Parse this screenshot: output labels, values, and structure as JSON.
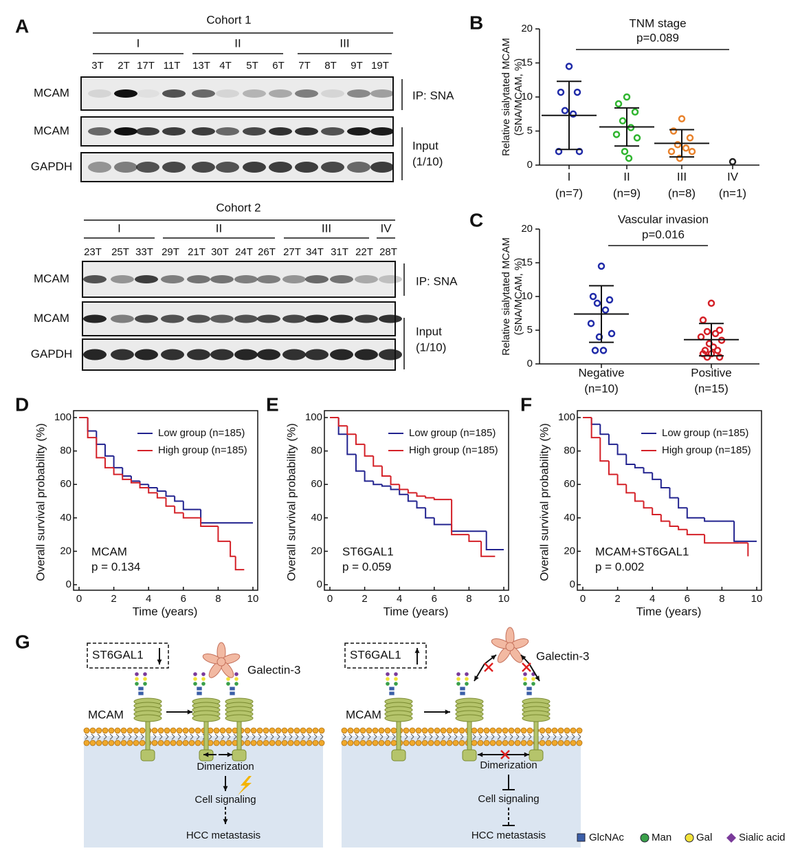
{
  "panel_labels": {
    "a": "A",
    "b": "B",
    "c": "C",
    "d": "D",
    "e": "E",
    "f": "F",
    "g": "G"
  },
  "blots": [
    {
      "title": "Cohort 1",
      "groups": [
        "I",
        "II",
        "III"
      ],
      "samples": [
        "3T",
        "2T",
        "17T",
        "11T",
        "13T",
        "4T",
        "5T",
        "6T",
        "7T",
        "8T",
        "9T",
        "19T"
      ],
      "rows": [
        "MCAM",
        "MCAM",
        "GAPDH"
      ],
      "annotations": [
        "IP: SNA",
        "Input",
        "(1/10)"
      ]
    },
    {
      "title": "Cohort 2",
      "groups": [
        "I",
        "II",
        "III",
        "IV"
      ],
      "samples": [
        "23T",
        "25T",
        "33T",
        "29T",
        "21T",
        "30T",
        "24T",
        "26T",
        "27T",
        "34T",
        "31T",
        "22T",
        "28T"
      ],
      "rows": [
        "MCAM",
        "MCAM",
        "GAPDH"
      ],
      "annotations": [
        "IP: SNA",
        "Input",
        "(1/10)"
      ]
    }
  ],
  "chart_data": [
    {
      "type": "dotplot",
      "title": "TNM stage",
      "annotation": "p=0.089",
      "y_label": [
        "Relative sialytated MCAM",
        "(SNA/MCAM, %)"
      ],
      "categories": [
        "I",
        "II",
        "III",
        "IV"
      ],
      "category_counts": [
        "(n=7)",
        "(n=9)",
        "(n=8)",
        "(n=1)"
      ],
      "colors": [
        "#1f2aa8",
        "#2fb52f",
        "#e8822c",
        "#222222"
      ],
      "points": [
        [
          14.5,
          10.7,
          10.7,
          8.0,
          7.5,
          2.0,
          2.0
        ],
        [
          10.0,
          9.0,
          7.8,
          6.5,
          5.5,
          4.5,
          4.0,
          2.0,
          1.0
        ],
        [
          6.8,
          5.0,
          4.0,
          3.0,
          2.5,
          2.0,
          2.0,
          1.0
        ],
        [
          0.5
        ]
      ],
      "mean": [
        7.3,
        5.6,
        3.2,
        null
      ],
      "sd": [
        5.0,
        2.8,
        2.0,
        null
      ],
      "ylim": [
        0,
        20
      ],
      "yticks": [
        0,
        5,
        10,
        15,
        20
      ]
    },
    {
      "type": "dotplot",
      "title": "Vascular invasion",
      "annotation": "p=0.016",
      "y_label": [
        "Relative sialytated MCAM",
        "(SNA/MCAM, %)"
      ],
      "categories": [
        "Negative",
        "Positive"
      ],
      "category_counts": [
        "(n=10)",
        "(n=15)"
      ],
      "colors": [
        "#1f2aa8",
        "#d42027"
      ],
      "points": [
        [
          14.5,
          10.0,
          9.5,
          9.0,
          8.0,
          6.0,
          4.5,
          4.0,
          2.0,
          2.0
        ],
        [
          9.0,
          6.5,
          5.0,
          4.8,
          4.5,
          4.0,
          3.5,
          3.0,
          2.5,
          2.0,
          2.0,
          1.5,
          1.5,
          1.0,
          1.0
        ]
      ],
      "mean": [
        7.4,
        3.6
      ],
      "sd": [
        4.2,
        2.4
      ],
      "ylim": [
        0,
        20
      ],
      "yticks": [
        0,
        5,
        10,
        15,
        20
      ]
    },
    {
      "type": "line",
      "step": true,
      "x_label": "Time (years)",
      "y_label": "Overall survival probability (%)",
      "annotation": [
        "MCAM",
        "p = 0.134"
      ],
      "xlim": [
        0,
        10
      ],
      "xticks": [
        0,
        2,
        4,
        6,
        8,
        10
      ],
      "ylim": [
        0,
        100
      ],
      "yticks": [
        0,
        20,
        40,
        60,
        80,
        100
      ],
      "series": [
        {
          "name": "Low group (n=185)",
          "color": "#22238f",
          "x": [
            0,
            0.5,
            1,
            1.5,
            2,
            2.5,
            3,
            3.5,
            4,
            4.5,
            5,
            5.5,
            6,
            6.9,
            7,
            10
          ],
          "values": [
            100,
            92,
            84,
            77,
            70,
            65,
            62,
            60,
            58,
            56,
            53,
            50,
            45,
            45,
            37,
            37
          ]
        },
        {
          "name": "High group (n=185)",
          "color": "#d42027",
          "x": [
            0,
            0.5,
            1,
            1.5,
            2,
            2.5,
            3,
            3.5,
            4,
            4.5,
            5,
            5.5,
            6,
            6.9,
            7,
            8,
            8.7,
            9,
            9.5
          ],
          "values": [
            100,
            88,
            76,
            70,
            66,
            63,
            61,
            58,
            55,
            52,
            47,
            43,
            40,
            40,
            35,
            26,
            17,
            9,
            9
          ]
        }
      ]
    },
    {
      "type": "line",
      "step": true,
      "x_label": "Time (years)",
      "y_label": "Overall survival probability (%)",
      "annotation": [
        "ST6GAL1",
        "p = 0.059"
      ],
      "xlim": [
        0,
        10
      ],
      "xticks": [
        0,
        2,
        4,
        6,
        8,
        10
      ],
      "ylim": [
        0,
        100
      ],
      "yticks": [
        0,
        20,
        40,
        60,
        80,
        100
      ],
      "series": [
        {
          "name": "Low group (n=185)",
          "color": "#22238f",
          "x": [
            0,
            0.5,
            1,
            1.5,
            2,
            2.5,
            3,
            3.5,
            4,
            4.5,
            5,
            5.5,
            6,
            7,
            8,
            9,
            10
          ],
          "values": [
            100,
            90,
            78,
            68,
            62,
            60,
            59,
            57,
            54,
            50,
            46,
            40,
            36,
            32,
            32,
            21,
            21
          ]
        },
        {
          "name": "High group (n=185)",
          "color": "#d42027",
          "x": [
            0,
            0.5,
            1,
            1.5,
            2,
            2.5,
            3,
            3.5,
            4,
            4.5,
            5,
            5.5,
            6,
            6.9,
            7,
            8,
            8.7,
            9.5
          ],
          "values": [
            100,
            95,
            90,
            84,
            77,
            71,
            65,
            60,
            57,
            55,
            53,
            52,
            51,
            51,
            30,
            26,
            17,
            17
          ]
        }
      ]
    },
    {
      "type": "line",
      "step": true,
      "x_label": "Time (years)",
      "y_label": "Overall survival probability (%)",
      "annotation": [
        "MCAM+ST6GAL1",
        "p = 0.002"
      ],
      "xlim": [
        0,
        10
      ],
      "xticks": [
        0,
        2,
        4,
        6,
        8,
        10
      ],
      "ylim": [
        0,
        100
      ],
      "yticks": [
        0,
        20,
        40,
        60,
        80,
        100
      ],
      "series": [
        {
          "name": "Low group (n=185)",
          "color": "#22238f",
          "x": [
            0,
            0.5,
            1,
            1.5,
            2,
            2.5,
            3,
            3.5,
            4,
            4.5,
            5,
            5.5,
            6,
            7,
            8.7,
            10
          ],
          "values": [
            100,
            96,
            90,
            84,
            78,
            72,
            70,
            67,
            63,
            58,
            52,
            46,
            40,
            38,
            26,
            26
          ]
        },
        {
          "name": "High group (n=185)",
          "color": "#d42027",
          "x": [
            0,
            0.5,
            1,
            1.5,
            2,
            2.5,
            3,
            3.5,
            4,
            4.5,
            5,
            5.5,
            6,
            7,
            9,
            9.5
          ],
          "values": [
            100,
            88,
            74,
            66,
            60,
            55,
            50,
            46,
            42,
            38,
            35,
            33,
            30,
            25,
            25,
            17
          ]
        }
      ]
    }
  ],
  "diagram": {
    "left": {
      "enzyme": "ST6GAL1",
      "lectin": "Galectin-3",
      "protein": "MCAM",
      "steps": [
        "Dimerization",
        "Cell signaling",
        "HCC metastasis"
      ]
    },
    "right": {
      "enzyme": "ST6GAL1",
      "lectin": "Galectin-3",
      "protein": "MCAM",
      "steps": [
        "Dimerization",
        "Cell signaling",
        "HCC metastasis"
      ]
    },
    "legend": [
      "GlcNAc",
      "Man",
      "Gal",
      "Sialic acid"
    ]
  }
}
